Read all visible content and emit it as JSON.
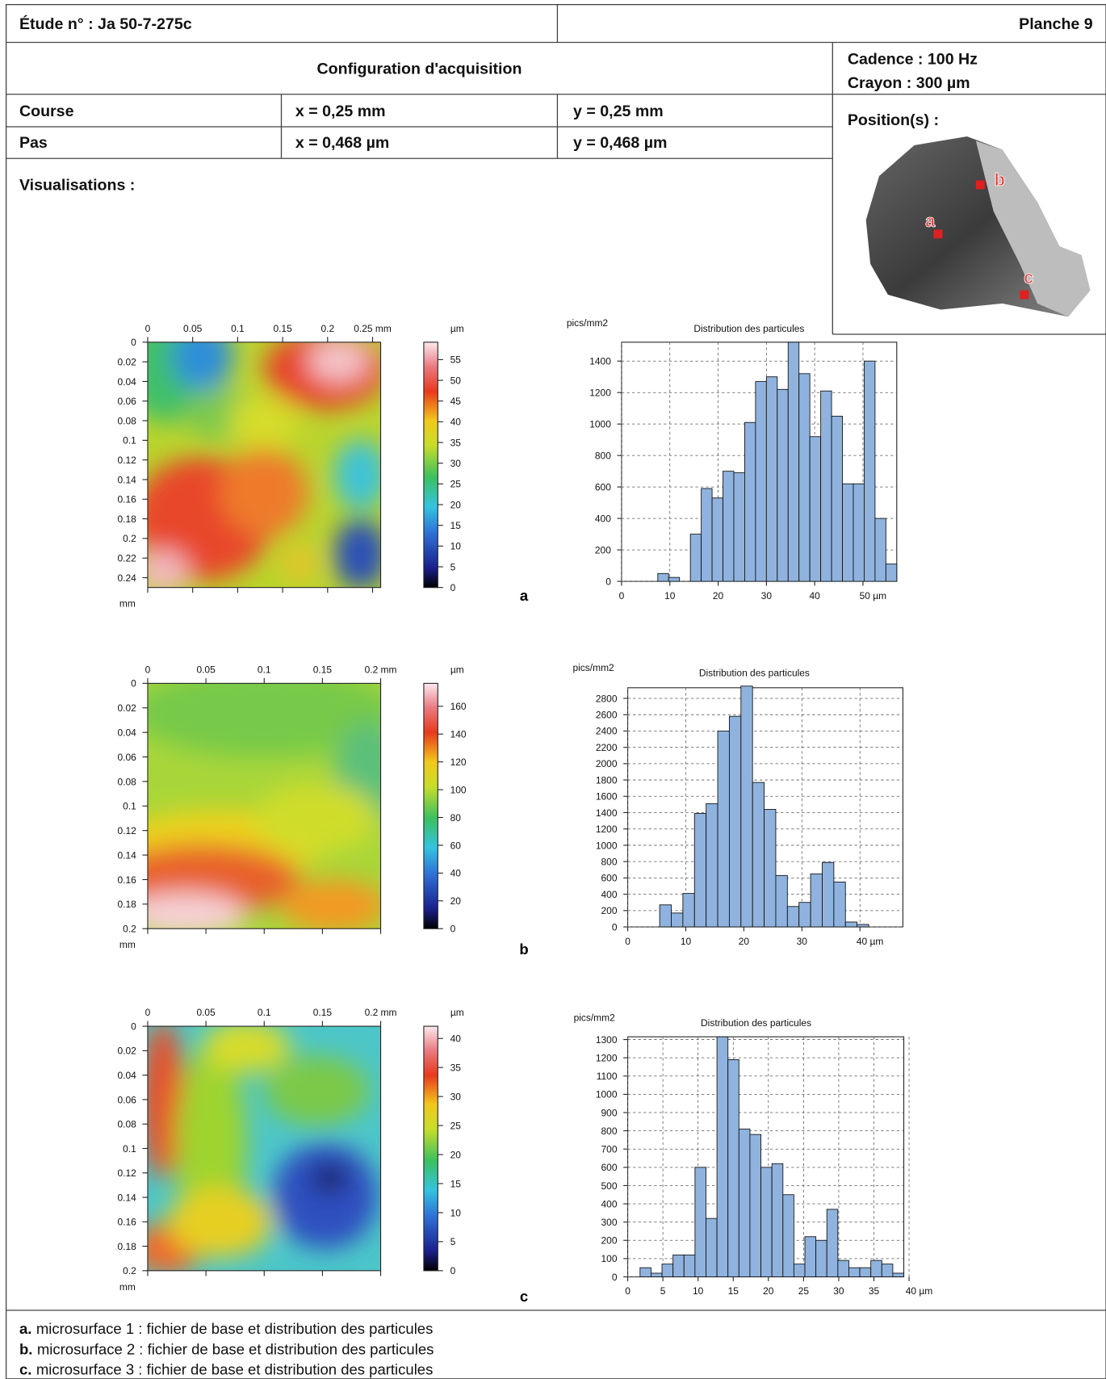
{
  "header": {
    "study": "Étude n° : Ja 50-7-275c",
    "plate": "Planche 9",
    "config_title": "Configuration d'acquisition",
    "cadence": "Cadence : 100 Hz",
    "crayon": "Crayon : 300 µm",
    "positions_label": "Position(s) :",
    "position_markers": [
      "a",
      "b",
      "c"
    ]
  },
  "table": {
    "rows": [
      [
        "Course",
        "x = 0,25 mm",
        "y = 0,25 mm"
      ],
      [
        "Pas",
        "x = 0,468 µm",
        "y = 0,468 µm"
      ]
    ]
  },
  "visualisations_label": "Visualisations :",
  "maps": [
    {
      "letter": "a",
      "xlim": [
        0,
        0.259
      ],
      "xticks": [
        0,
        0.05,
        0.1,
        0.15,
        0.2,
        {
          "value": 0.25,
          "label": "0.25 mm"
        }
      ],
      "ylim": [
        0,
        0.25
      ],
      "yticks": [
        0,
        0.02,
        0.04,
        0.06,
        0.08,
        0.1,
        0.12,
        0.14,
        0.16,
        0.18,
        0.2,
        0.22,
        0.24
      ],
      "y_label": "mm",
      "color_label": "µm",
      "clim": [
        0,
        59.2
      ],
      "cticks": [
        0,
        5,
        10,
        15,
        20,
        25,
        30,
        35,
        40,
        45,
        50,
        55
      ]
    },
    {
      "letter": "b",
      "xlim": [
        0,
        0.2
      ],
      "xticks": [
        0,
        0.05,
        0.1,
        0.15,
        {
          "value": 0.2,
          "label": "0.2 mm"
        }
      ],
      "ylim": [
        0,
        0.2
      ],
      "yticks": [
        0,
        0.02,
        0.04,
        0.06,
        0.08,
        0.1,
        0.12,
        0.14,
        0.16,
        0.18,
        0.2
      ],
      "y_label": "mm",
      "color_label": "µm",
      "clim": [
        0,
        176.5
      ],
      "cticks": [
        0,
        20,
        40,
        60,
        80,
        100,
        120,
        140,
        160
      ]
    },
    {
      "letter": "c",
      "xlim": [
        0,
        0.2
      ],
      "xticks": [
        0,
        0.05,
        0.1,
        0.15,
        {
          "value": 0.2,
          "label": "0.2 mm"
        }
      ],
      "ylim": [
        0,
        0.2
      ],
      "yticks": [
        0,
        0.02,
        0.04,
        0.06,
        0.08,
        0.1,
        0.12,
        0.14,
        0.16,
        0.18,
        0.2
      ],
      "y_label": "mm",
      "color_label": "µm",
      "clim": [
        0,
        42.1
      ],
      "cticks": [
        0,
        5,
        10,
        15,
        20,
        25,
        30,
        35,
        40
      ]
    }
  ],
  "chart_data": [
    {
      "type": "histogram",
      "title": "Distribution des particules",
      "y_label": "pics/mm2",
      "color": "#8fb3de",
      "bins": [
        7.5,
        9.75,
        12,
        14.25,
        16.5,
        18.75,
        21,
        23.25,
        25.5,
        27.75,
        30,
        32.25,
        34.5,
        36.75,
        39,
        41.25,
        43.5,
        45.75,
        48,
        50.25,
        52.5,
        54.75,
        57
      ],
      "values": [
        50,
        25,
        0,
        300,
        590,
        530,
        700,
        690,
        1010,
        1270,
        1300,
        1220,
        1520,
        1320,
        920,
        1210,
        1050,
        620,
        620,
        1400,
        400,
        110
      ],
      "xlim": [
        0,
        57
      ],
      "xticks": [
        0,
        10,
        20,
        30,
        40,
        {
          "value": 50,
          "label": "50 µm"
        }
      ],
      "ylim": [
        0,
        1520
      ],
      "yticks": [
        0,
        200,
        400,
        600,
        800,
        1000,
        1200,
        1400
      ],
      "grid": true
    },
    {
      "type": "histogram",
      "title": "Distribution des particules",
      "y_label": "pics/mm2",
      "color": "#8fb3de",
      "bins": [
        5.5,
        7.5,
        9.5,
        11.5,
        13.5,
        15.5,
        17.5,
        19.5,
        21.5,
        23.5,
        25.5,
        27.5,
        29.5,
        31.5,
        33.5,
        35.5,
        37.5,
        39.5,
        41.5
      ],
      "values": [
        270,
        170,
        410,
        1390,
        1510,
        2400,
        2580,
        2950,
        1770,
        1440,
        630,
        250,
        300,
        650,
        790,
        550,
        60,
        30
      ],
      "xlim": [
        0,
        47.4
      ],
      "xticks": [
        0,
        10,
        20,
        30,
        {
          "value": 40,
          "label": "40 µm"
        }
      ],
      "ylim": [
        0,
        2930
      ],
      "yticks": [
        0,
        200,
        400,
        600,
        800,
        1000,
        1200,
        1400,
        1600,
        1800,
        2000,
        2200,
        2400,
        2600,
        2800
      ],
      "grid": true
    },
    {
      "type": "histogram",
      "title": "Distribution des particules",
      "y_label": "pics/mm2",
      "color": "#8fb3de",
      "bins": [
        1.75,
        3.3125,
        4.875,
        6.4375,
        8,
        9.5625,
        11.125,
        12.6875,
        14.25,
        15.8125,
        17.375,
        18.9375,
        20.5,
        22.0625,
        23.625,
        25.1875,
        26.75,
        28.3125,
        29.875,
        31.4375,
        33,
        34.5625,
        36.125,
        37.6875,
        39.25
      ],
      "values": [
        50,
        20,
        70,
        120,
        120,
        600,
        320,
        1315,
        1190,
        810,
        780,
        600,
        620,
        450,
        70,
        220,
        200,
        370,
        90,
        50,
        50,
        90,
        70,
        20
      ],
      "xlim": [
        0,
        39.25
      ],
      "xticks": [
        0,
        5,
        10,
        15,
        20,
        25,
        30,
        35,
        {
          "value": 40,
          "label": "40 µm"
        }
      ],
      "ylim": [
        0,
        1315
      ],
      "yticks": [
        0,
        100,
        200,
        300,
        400,
        500,
        600,
        700,
        800,
        900,
        1000,
        1100,
        1200,
        1300
      ],
      "grid": true
    }
  ],
  "captions": [
    {
      "letter": "a.",
      "text": "microsurface 1 : fichier de base et distribution des particules"
    },
    {
      "letter": "b.",
      "text": "microsurface 2 : fichier de base et distribution des particules"
    },
    {
      "letter": "c.",
      "text": "microsurface 3 : fichier de base et distribution des particules"
    }
  ]
}
